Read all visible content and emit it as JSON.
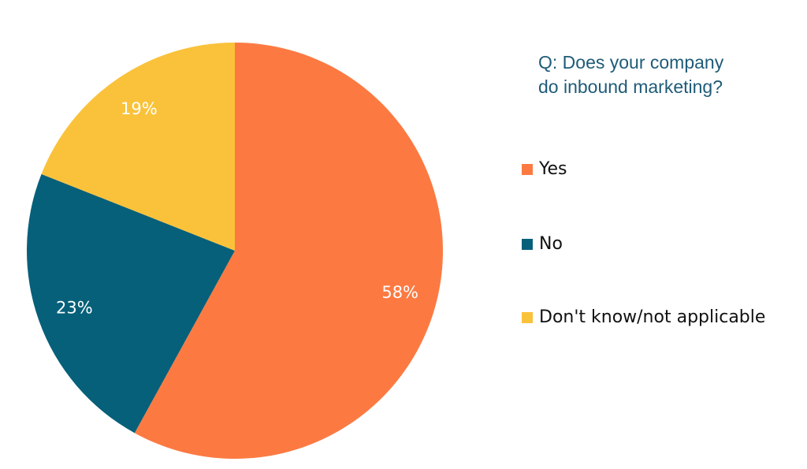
{
  "chart_data": {
    "type": "pie",
    "title_lines": [
      "Q: Does your company",
      "do inbound marketing?"
    ],
    "legend_position": "right",
    "slices": [
      {
        "label": "Yes",
        "value": 58,
        "value_label": "58%",
        "color": "#fc7a42"
      },
      {
        "label": "No",
        "value": 23,
        "value_label": "23%",
        "color": "#07607a"
      },
      {
        "label": "Don't know/not applicable",
        "value": 19,
        "value_label": "19%",
        "color": "#fac23a"
      }
    ]
  }
}
